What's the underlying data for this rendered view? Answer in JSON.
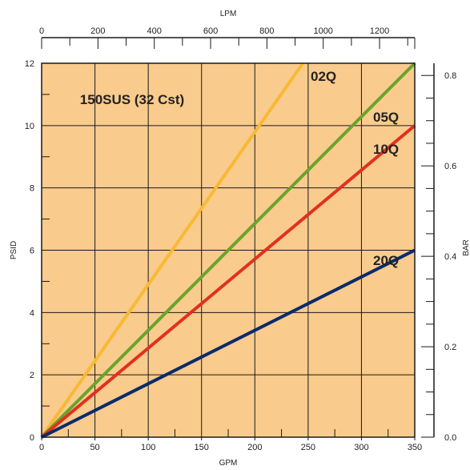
{
  "chart_data": {
    "type": "line",
    "annotation": "150SUS (32 Cst)",
    "xlabel": "GPM",
    "ylabel": "PSID",
    "x2label": "LPM",
    "y2label": "BAR",
    "xlim": [
      0,
      350
    ],
    "ylim": [
      0,
      12
    ],
    "x2lim": [
      0,
      1325
    ],
    "y2lim": [
      0,
      0.827
    ],
    "x_ticks": [
      0,
      50,
      100,
      150,
      200,
      250,
      300,
      350
    ],
    "y_ticks": [
      0,
      2,
      4,
      6,
      8,
      10,
      12
    ],
    "x2_ticks": [
      0,
      200,
      400,
      600,
      800,
      1000,
      1200
    ],
    "y2_ticks": [
      0.0,
      0.2,
      0.4,
      0.6,
      0.8
    ],
    "x2_tick_labels": [
      "0",
      "200",
      "400",
      "600",
      "800",
      "1000",
      "1200"
    ],
    "y2_tick_labels": [
      "0.0",
      "0.2",
      "0.4",
      "0.6",
      "0.8"
    ],
    "grid": true,
    "background_color": "#f9cb8c",
    "series": [
      {
        "name": "02Q",
        "color": "#f8b934",
        "x": [
          0,
          245
        ],
        "y": [
          0,
          12
        ]
      },
      {
        "name": "05Q",
        "color": "#6aa32b",
        "x": [
          0,
          350
        ],
        "y": [
          0,
          12
        ]
      },
      {
        "name": "10Q",
        "color": "#e2301f",
        "x": [
          0,
          350
        ],
        "y": [
          0,
          10
        ]
      },
      {
        "name": "20Q",
        "color": "#0a2a6e",
        "x": [
          0,
          350
        ],
        "y": [
          0,
          6
        ]
      }
    ]
  }
}
